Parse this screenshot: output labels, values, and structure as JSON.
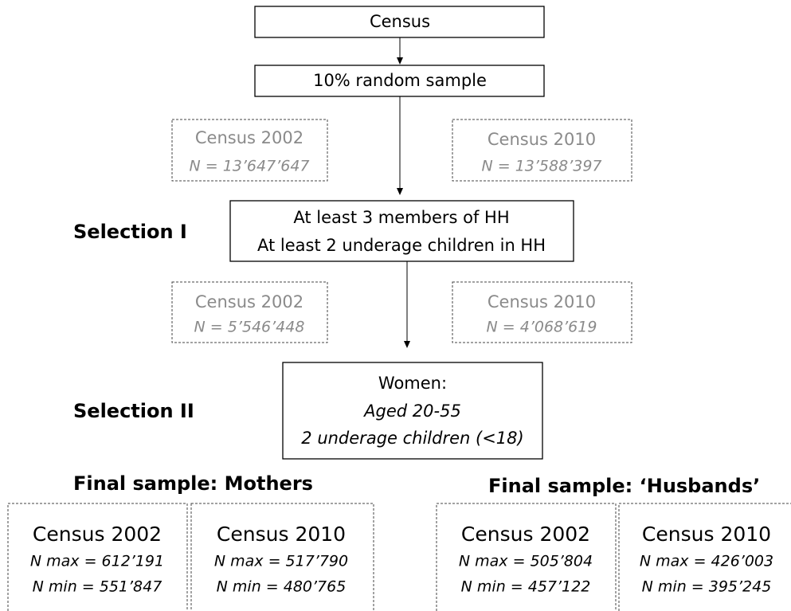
{
  "flow": [
    {
      "lines": [
        "Census"
      ]
    },
    {
      "lines": [
        "10% random sample"
      ]
    },
    {
      "lines": [
        "At least 3 members of HH",
        "At least 2 underage children in HH"
      ]
    },
    {
      "lines": [
        "Women:",
        "Aged 20-55",
        "2 underage children (<18)"
      ]
    }
  ],
  "side": [
    {
      "title": "Census 2002",
      "count": "N = 13’647’647"
    },
    {
      "title": "Census 2010",
      "count": "N = 13’588’397"
    },
    {
      "title": "Census 2002",
      "count": "N = 5’546’448"
    },
    {
      "title": "Census 2010",
      "count": "N = 4’068’619"
    }
  ],
  "stages": [
    "Selection I",
    "Selection II"
  ],
  "final": [
    {
      "header": "Final sample: Mothers",
      "boxes": [
        {
          "title": "Census 2002",
          "max": "N max = 612’191",
          "min": "N min = 551’847"
        },
        {
          "title": "Census 2010",
          "max": "N max = 517’790",
          "min": "N min = 480’765"
        }
      ]
    },
    {
      "header": "Final sample: ‘Husbands’",
      "boxes": [
        {
          "title": "Census 2002",
          "max": "N max = 505’804",
          "min": "N min = 457’122"
        },
        {
          "title": "Census 2010",
          "max": "N max = 426’003",
          "min": "N min = 395’245"
        }
      ]
    }
  ]
}
